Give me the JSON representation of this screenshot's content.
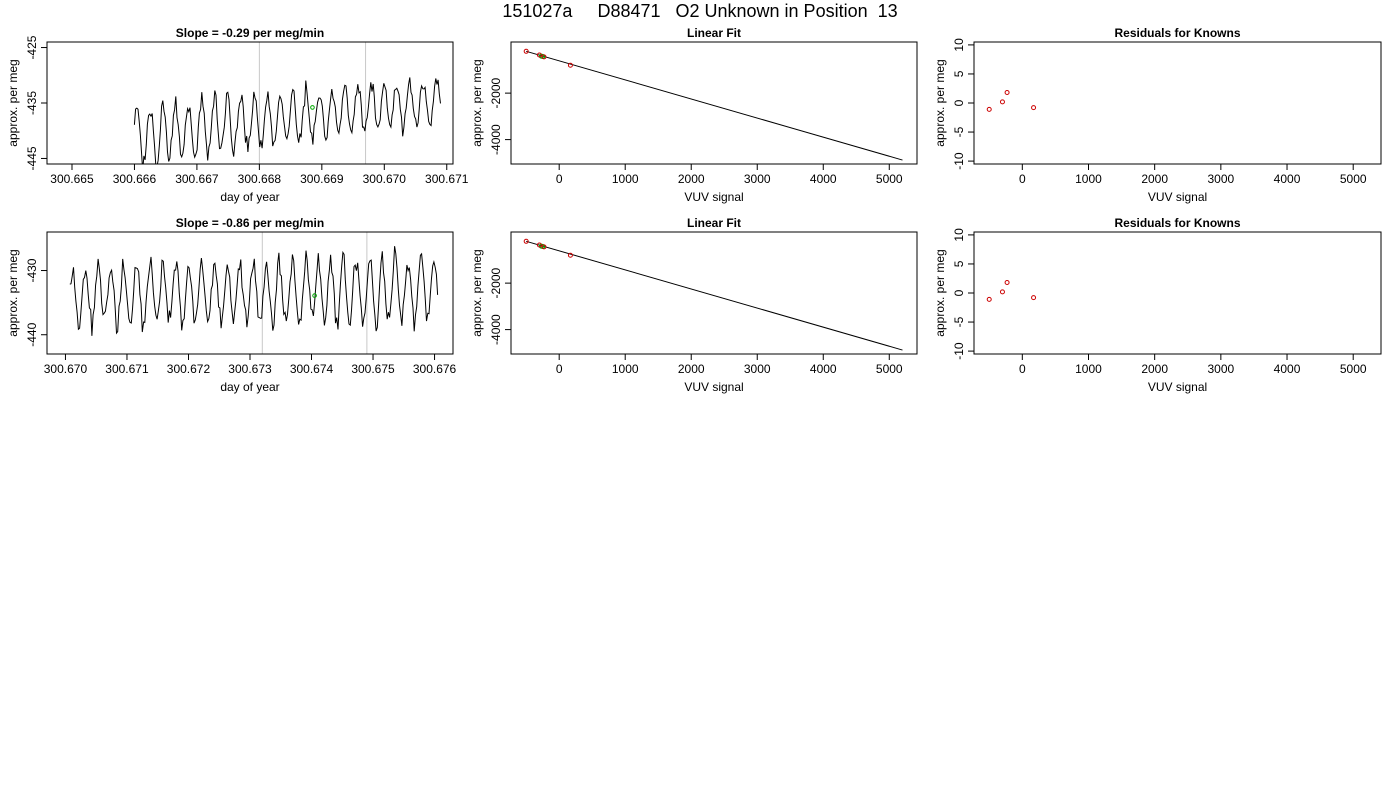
{
  "page_title": "151027a     D88471   O2 Unknown in Position  13",
  "colors": {
    "line": "#000000",
    "grid_vline": "#c8c8c8",
    "known_point": "#cc0000",
    "unknown_point": "#00aa00"
  },
  "chart_data": [
    {
      "id": "time-top",
      "type": "line",
      "title": "Slope =  -0.29  per meg/min",
      "xlabel": "day of year",
      "ylabel": "approx. per meg",
      "xlim": [
        300.6646,
        300.6711
      ],
      "ylim": [
        -446,
        -424
      ],
      "xticks": [
        300.665,
        300.666,
        300.667,
        300.668,
        300.669,
        300.67,
        300.671
      ],
      "xtick_labels": [
        "300.665",
        "300.666",
        "300.667",
        "300.668",
        "300.669",
        "300.670",
        "300.671"
      ],
      "yticks": [
        -445,
        -435,
        -425
      ],
      "ytick_labels": [
        "-445",
        "-435",
        "-425"
      ],
      "vlines": [
        300.668,
        300.6697
      ],
      "signal": {
        "x_start": 300.666,
        "x_end": 300.6709,
        "n": 260,
        "mean_start": -441,
        "mean_end": -434.5,
        "amp_start": 6,
        "amp_end": 4.5,
        "period": 0.00021,
        "seed": 7
      },
      "unknown_point": {
        "x": 300.66885,
        "y": -435.8
      }
    },
    {
      "id": "fit-top",
      "type": "scatter",
      "title": "Linear Fit",
      "xlabel": "VUV signal",
      "ylabel": "approx. per meg",
      "xlim": [
        -730,
        5420
      ],
      "ylim": [
        -5050,
        200
      ],
      "xticks": [
        0,
        1000,
        2000,
        3000,
        4000,
        5000
      ],
      "xtick_labels": [
        "0",
        "1000",
        "2000",
        "3000",
        "4000",
        "5000"
      ],
      "yticks": [
        -4000,
        -2000
      ],
      "ytick_labels": [
        "-4000",
        "-2000"
      ],
      "fit_line": {
        "x": [
          -500,
          5200
        ],
        "y": [
          -200,
          -4880
        ]
      },
      "known_points": [
        {
          "x": -500,
          "y": -200
        },
        {
          "x": -300,
          "y": -360
        },
        {
          "x": -230,
          "y": -440
        },
        {
          "x": 170,
          "y": -800
        }
      ],
      "unknown_points": [
        {
          "x": -270,
          "y": -410
        },
        {
          "x": -250,
          "y": -425
        }
      ]
    },
    {
      "id": "resid-top",
      "type": "scatter",
      "title": "Residuals for Knowns",
      "xlabel": "VUV signal",
      "ylabel": "approx. per meg",
      "xlim": [
        -730,
        5420
      ],
      "ylim": [
        -10.5,
        10.5
      ],
      "xticks": [
        0,
        1000,
        2000,
        3000,
        4000,
        5000
      ],
      "xtick_labels": [
        "0",
        "1000",
        "2000",
        "3000",
        "4000",
        "5000"
      ],
      "yticks": [
        -10,
        -5,
        0,
        5,
        10
      ],
      "ytick_labels": [
        "-10",
        "-5",
        "0",
        "5",
        "10"
      ],
      "known_points": [
        {
          "x": -500,
          "y": -1.1
        },
        {
          "x": -300,
          "y": 0.2
        },
        {
          "x": -230,
          "y": 1.8
        },
        {
          "x": 170,
          "y": -0.8
        }
      ]
    },
    {
      "id": "time-bottom",
      "type": "line",
      "title": "Slope =  -0.86  per meg/min",
      "xlabel": "day of year",
      "ylabel": "approx. per meg",
      "xlim": [
        300.6697,
        300.6763
      ],
      "ylim": [
        -443,
        -424
      ],
      "xticks": [
        300.67,
        300.671,
        300.672,
        300.673,
        300.674,
        300.675,
        300.676
      ],
      "xtick_labels": [
        "300.670",
        "300.671",
        "300.672",
        "300.673",
        "300.674",
        "300.675",
        "300.676"
      ],
      "yticks": [
        -440,
        -430
      ],
      "ytick_labels": [
        "-440",
        "-430"
      ],
      "vlines": [
        300.6732,
        300.6749
      ],
      "signal": {
        "x_start": 300.67007,
        "x_end": 300.67605,
        "n": 300,
        "mean_start": -434,
        "mean_end": -433,
        "amp_start": 5,
        "amp_end": 6,
        "period": 0.00021,
        "seed": 13
      },
      "unknown_point": {
        "x": 300.67405,
        "y": -433.9
      }
    },
    {
      "id": "fit-bottom",
      "type": "scatter",
      "title": "Linear Fit",
      "xlabel": "VUV signal",
      "ylabel": "approx. per meg",
      "xlim": [
        -730,
        5420
      ],
      "ylim": [
        -5050,
        200
      ],
      "xticks": [
        0,
        1000,
        2000,
        3000,
        4000,
        5000
      ],
      "xtick_labels": [
        "0",
        "1000",
        "2000",
        "3000",
        "4000",
        "5000"
      ],
      "yticks": [
        -4000,
        -2000
      ],
      "ytick_labels": [
        "-4000",
        "-2000"
      ],
      "fit_line": {
        "x": [
          -500,
          5200
        ],
        "y": [
          -200,
          -4880
        ]
      },
      "known_points": [
        {
          "x": -500,
          "y": -200
        },
        {
          "x": -300,
          "y": -360
        },
        {
          "x": -230,
          "y": -440
        },
        {
          "x": 170,
          "y": -800
        }
      ],
      "unknown_points": [
        {
          "x": -270,
          "y": -410
        },
        {
          "x": -250,
          "y": -425
        }
      ]
    },
    {
      "id": "resid-bottom",
      "type": "scatter",
      "title": "Residuals for Knowns",
      "xlabel": "VUV signal",
      "ylabel": "approx. per meg",
      "xlim": [
        -730,
        5420
      ],
      "ylim": [
        -10.5,
        10.5
      ],
      "xticks": [
        0,
        1000,
        2000,
        3000,
        4000,
        5000
      ],
      "xtick_labels": [
        "0",
        "1000",
        "2000",
        "3000",
        "4000",
        "5000"
      ],
      "yticks": [
        -10,
        -5,
        0,
        5,
        10
      ],
      "ytick_labels": [
        "-10",
        "-5",
        "0",
        "5",
        "10"
      ],
      "known_points": [
        {
          "x": -500,
          "y": -1.1
        },
        {
          "x": -300,
          "y": 0.2
        },
        {
          "x": -230,
          "y": 1.8
        },
        {
          "x": 170,
          "y": -0.8
        }
      ]
    }
  ]
}
